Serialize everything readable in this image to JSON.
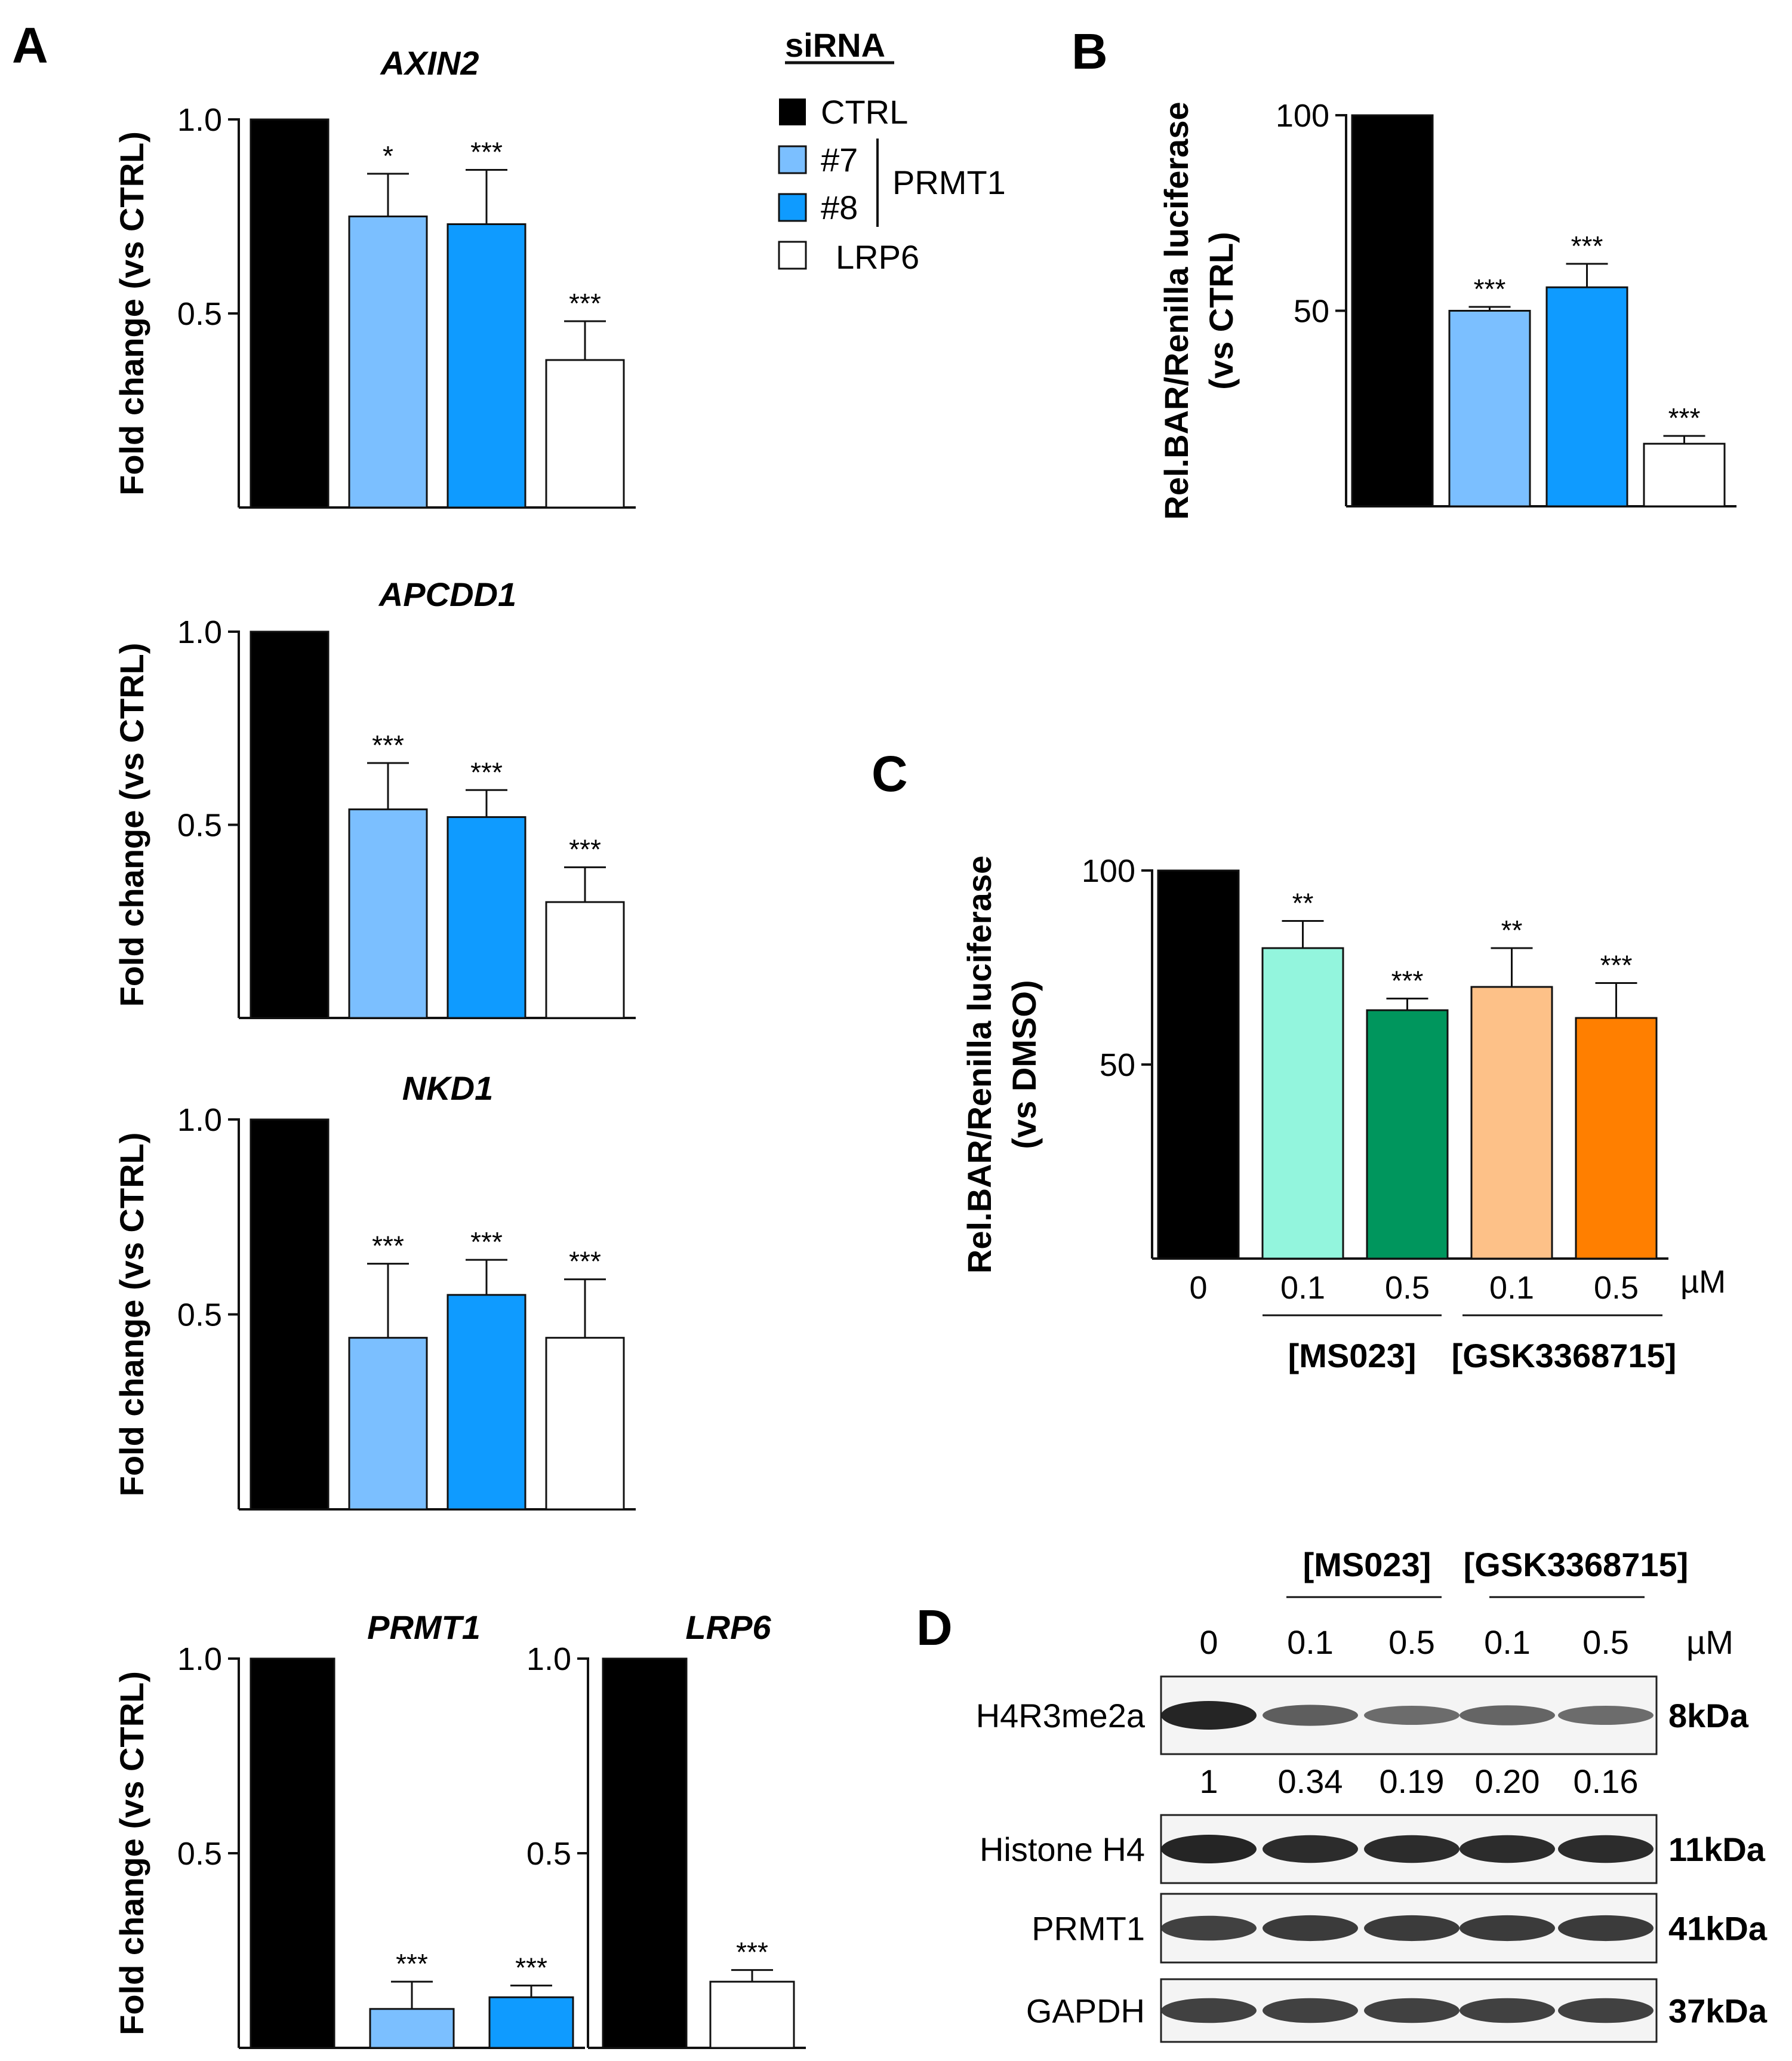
{
  "panel_labels": {
    "a": "A",
    "b": "B",
    "c": "C",
    "d": "D"
  },
  "legend": {
    "title": "siRNA",
    "items": [
      {
        "label": "CTRL",
        "color": "#000000"
      },
      {
        "label": "#7",
        "color": "#7bbfff"
      },
      {
        "label": "#8",
        "color": "#0f9bff"
      },
      {
        "label": "LRP6",
        "color": "#ffffff"
      }
    ],
    "group_label": "PRMT1"
  },
  "chart_data": [
    {
      "id": "axin2",
      "type": "bar",
      "title": "AXIN2",
      "ylabel": "Fold change (vs CTRL)",
      "categories": [
        "CTRL",
        "#7",
        "#8",
        "LRP6"
      ],
      "values": [
        1.0,
        0.75,
        0.73,
        0.38
      ],
      "errors": [
        0,
        0.11,
        0.14,
        0.1
      ],
      "significance": [
        "",
        "*",
        "***",
        "***"
      ],
      "ylim": [
        0,
        1.0
      ],
      "yticks": [
        0.5,
        1.0
      ],
      "ytick_labels": [
        "0.5",
        "1.0"
      ],
      "colors": [
        "#000000",
        "#7bbfff",
        "#0f9bff",
        "#ffffff"
      ]
    },
    {
      "id": "apcdd1",
      "type": "bar",
      "title": "APCDD1",
      "ylabel": "Fold change (vs CTRL)",
      "categories": [
        "CTRL",
        "#7",
        "#8",
        "LRP6"
      ],
      "values": [
        1.0,
        0.54,
        0.52,
        0.3
      ],
      "errors": [
        0,
        0.12,
        0.07,
        0.09
      ],
      "significance": [
        "",
        "***",
        "***",
        "***"
      ],
      "ylim": [
        0,
        1.0
      ],
      "yticks": [
        0.5,
        1.0
      ],
      "ytick_labels": [
        "0.5",
        "1.0"
      ],
      "colors": [
        "#000000",
        "#7bbfff",
        "#0f9bff",
        "#ffffff"
      ]
    },
    {
      "id": "nkd1",
      "type": "bar",
      "title": "NKD1",
      "ylabel": "Fold change (vs CTRL)",
      "categories": [
        "CTRL",
        "#7",
        "#8",
        "LRP6"
      ],
      "values": [
        1.0,
        0.44,
        0.55,
        0.44
      ],
      "errors": [
        0,
        0.19,
        0.09,
        0.15
      ],
      "significance": [
        "",
        "***",
        "***",
        "***"
      ],
      "ylim": [
        0,
        1.0
      ],
      "yticks": [
        0.5,
        1.0
      ],
      "ytick_labels": [
        "0.5",
        "1.0"
      ],
      "colors": [
        "#000000",
        "#7bbfff",
        "#0f9bff",
        "#ffffff"
      ]
    },
    {
      "id": "prmt1",
      "type": "bar",
      "title": "PRMT1",
      "ylabel": "Fold change (vs CTRL)",
      "categories": [
        "CTRL",
        "#7",
        "#8"
      ],
      "values": [
        1.0,
        0.1,
        0.13
      ],
      "errors": [
        0,
        0.07,
        0.03
      ],
      "significance": [
        "",
        "***",
        "***"
      ],
      "ylim": [
        0,
        1.0
      ],
      "yticks": [
        0.5,
        1.0
      ],
      "ytick_labels": [
        "0.5",
        "1.0"
      ],
      "colors": [
        "#000000",
        "#7bbfff",
        "#0f9bff"
      ]
    },
    {
      "id": "lrp6",
      "type": "bar",
      "title": "LRP6",
      "ylabel": "",
      "categories": [
        "CTRL",
        "LRP6"
      ],
      "values": [
        1.0,
        0.17
      ],
      "errors": [
        0,
        0.03
      ],
      "significance": [
        "",
        "***"
      ],
      "ylim": [
        0,
        1.0
      ],
      "yticks": [
        0.5,
        1.0
      ],
      "ytick_labels": [
        "0.5",
        "1.0"
      ],
      "colors": [
        "#000000",
        "#ffffff"
      ]
    },
    {
      "id": "bar_luc_sirna",
      "type": "bar",
      "title": "",
      "ylabel": "Rel.BAR/Renilla luciferase",
      "ylabel2": "(vs  CTRL)",
      "categories": [
        "CTRL",
        "#7",
        "#8",
        "LRP6"
      ],
      "values": [
        100,
        50,
        56,
        16
      ],
      "errors": [
        0,
        1,
        6,
        2
      ],
      "significance": [
        "",
        "***",
        "***",
        "***"
      ],
      "ylim": [
        0,
        100
      ],
      "yticks": [
        50,
        100
      ],
      "ytick_labels": [
        "50",
        "100"
      ],
      "colors": [
        "#000000",
        "#7bbfff",
        "#0f9bff",
        "#ffffff"
      ]
    },
    {
      "id": "bar_luc_inhib",
      "type": "bar",
      "title": "",
      "ylabel": "Rel.BAR/Renilla luciferase",
      "ylabel2": "(vs  DMSO)",
      "categories": [
        "0",
        "0.1",
        "0.5",
        "0.1",
        "0.5"
      ],
      "values": [
        100,
        80,
        64,
        70,
        62
      ],
      "errors": [
        0,
        7,
        3,
        10,
        9
      ],
      "significance": [
        "",
        "**",
        "***",
        "**",
        "***"
      ],
      "ylim": [
        0,
        100
      ],
      "yticks": [
        50,
        100
      ],
      "ytick_labels": [
        "50",
        "100"
      ],
      "xunit": "µM",
      "groups": [
        "[MS023]",
        "[GSK3368715]"
      ],
      "colors": [
        "#000000",
        "#93f5dd",
        "#00965d",
        "#fdc188",
        "#ff7f00"
      ]
    }
  ],
  "western_blot": {
    "groups": [
      "[MS023]",
      "[GSK3368715]"
    ],
    "lanes": [
      "0",
      "0.1",
      "0.5",
      "0.1",
      "0.5"
    ],
    "unit": "µM",
    "rows": [
      {
        "label": "H4R3me2a",
        "size": "8kDa",
        "intensities": [
          1.0,
          0.6,
          0.5,
          0.55,
          0.5
        ]
      },
      {
        "label": "Histone H4",
        "size": "11kDa",
        "intensities": [
          1.0,
          0.95,
          0.95,
          0.95,
          0.95
        ]
      },
      {
        "label": "PRMT1",
        "size": "41kDa",
        "intensities": [
          0.8,
          0.85,
          0.85,
          0.85,
          0.85
        ]
      },
      {
        "label": "GAPDH",
        "size": "37kDa",
        "intensities": [
          0.8,
          0.8,
          0.8,
          0.8,
          0.8
        ]
      }
    ],
    "quantification": [
      "1",
      "0.34",
      "0.19",
      "0.20",
      "0.16"
    ]
  }
}
